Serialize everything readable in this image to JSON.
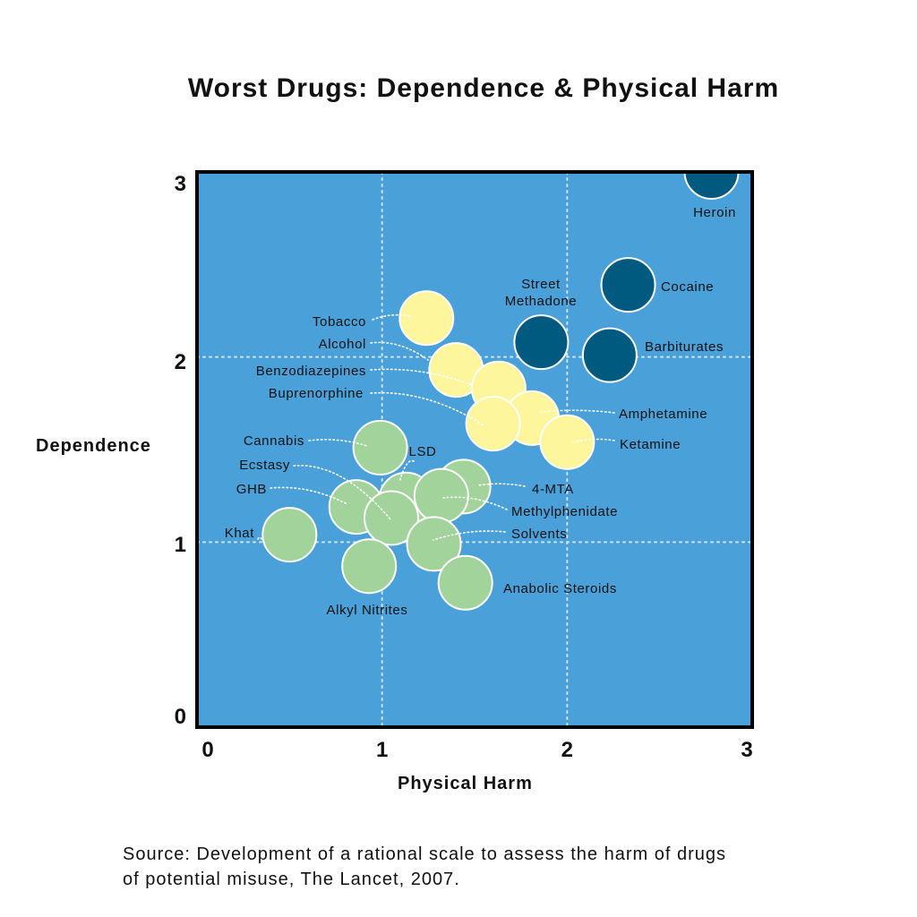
{
  "title": "Worst Drugs: Dependence & Physical Harm",
  "source_line1": "Source: Development of a rational scale to assess the harm of drugs",
  "source_line2": "of potential misuse, The Lancet, 2007.",
  "chart_data": {
    "type": "scatter",
    "title": "Worst Drugs: Dependence & Physical Harm",
    "xlabel": "Physical Harm",
    "ylabel": "Dependence",
    "xlim": [
      0,
      3
    ],
    "ylim": [
      0,
      3
    ],
    "xticks": [
      0,
      1,
      2,
      3
    ],
    "yticks": [
      0,
      1,
      2,
      3
    ],
    "grid": true,
    "background": "#4aa0d8",
    "group_colors": {
      "high": "#005a80",
      "medium": "#fef69c",
      "low": "#a1d39a"
    },
    "points": [
      {
        "name": "Heroin",
        "x": 2.78,
        "y": 3.0,
        "group": "high"
      },
      {
        "name": "Cocaine",
        "x": 2.33,
        "y": 2.39,
        "group": "high"
      },
      {
        "name": "Street Methadone",
        "x": 1.86,
        "y": 2.08,
        "group": "high"
      },
      {
        "name": "Barbiturates",
        "x": 2.23,
        "y": 2.01,
        "group": "high"
      },
      {
        "name": "Tobacco",
        "x": 1.24,
        "y": 2.21,
        "group": "medium"
      },
      {
        "name": "Alcohol",
        "x": 1.4,
        "y": 1.93,
        "group": "medium"
      },
      {
        "name": "Benzodiazepines",
        "x": 1.63,
        "y": 1.83,
        "group": "medium"
      },
      {
        "name": "Amphetamine",
        "x": 1.81,
        "y": 1.67,
        "group": "medium"
      },
      {
        "name": "Buprenorphine",
        "x": 1.6,
        "y": 1.64,
        "group": "medium"
      },
      {
        "name": "Ketamine",
        "x": 2.0,
        "y": 1.54,
        "group": "medium"
      },
      {
        "name": "Cannabis",
        "x": 0.99,
        "y": 1.51,
        "group": "low"
      },
      {
        "name": "4-MTA",
        "x": 1.44,
        "y": 1.3,
        "group": "low"
      },
      {
        "name": "LSD",
        "x": 1.13,
        "y": 1.23,
        "group": "low"
      },
      {
        "name": "Methylphenidate",
        "x": 1.32,
        "y": 1.25,
        "group": "low"
      },
      {
        "name": "GHB",
        "x": 0.86,
        "y": 1.19,
        "group": "low"
      },
      {
        "name": "Ecstasy",
        "x": 1.05,
        "y": 1.13,
        "group": "low"
      },
      {
        "name": "Khat",
        "x": 0.5,
        "y": 1.04,
        "group": "low"
      },
      {
        "name": "Solvents",
        "x": 1.28,
        "y": 0.99,
        "group": "low"
      },
      {
        "name": "Alkyl Nitrites",
        "x": 0.93,
        "y": 0.87,
        "group": "low"
      },
      {
        "name": "Anabolic Steroids",
        "x": 1.45,
        "y": 0.78,
        "group": "low"
      }
    ]
  }
}
